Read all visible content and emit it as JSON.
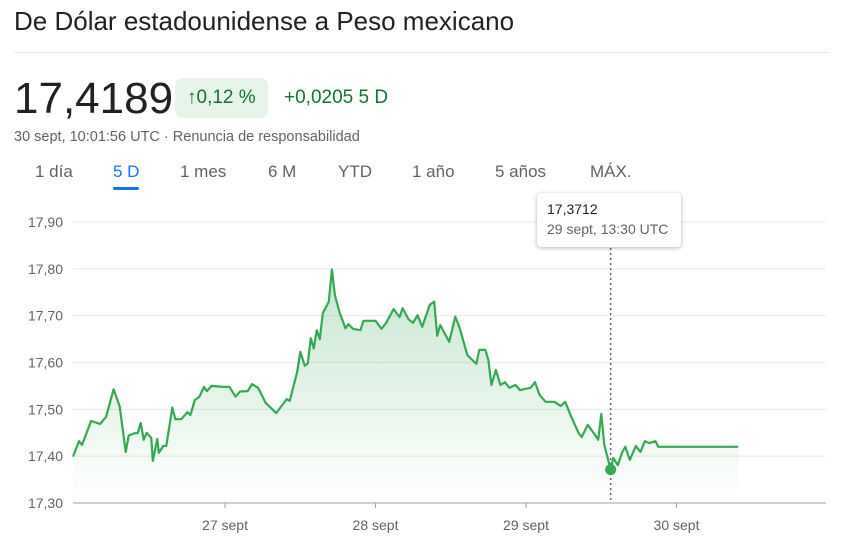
{
  "header": {
    "title": "De Dólar estadounidense a Peso mexicano"
  },
  "quote": {
    "price": "17,4189",
    "arrow_icon": "arrow-up-icon",
    "pct_change": "0,12 %",
    "abs_change": "+0,0205 5 D",
    "timestamp": "30 sept, 10:01:56 UTC · Renuncia de responsabilidad",
    "positive_color": "#137333"
  },
  "tabs": [
    {
      "label": "1 día"
    },
    {
      "label": "5 D",
      "active": true
    },
    {
      "label": "1 mes"
    },
    {
      "label": "6 M"
    },
    {
      "label": "YTD"
    },
    {
      "label": "1 año"
    },
    {
      "label": "5 años"
    },
    {
      "label": "MÁX."
    }
  ],
  "tooltip": {
    "value": "17,3712",
    "date": "29 sept, 13:30 UTC"
  },
  "chart_data": {
    "type": "area",
    "x_unit": "day of September (fractional, UTC)",
    "xlim": [
      25.99,
      31.4
    ],
    "ylim": [
      17.3,
      17.9
    ],
    "grid": true,
    "line_color": "#34a853",
    "y_ticks": [
      "17,30",
      "17,40",
      "17,50",
      "17,60",
      "17,70",
      "17,80",
      "17,90"
    ],
    "x_ticks": [
      {
        "x": 27,
        "label": "27 sept"
      },
      {
        "x": 28,
        "label": "28 sept"
      },
      {
        "x": 29,
        "label": "29 sept"
      },
      {
        "x": 30,
        "label": "30 sept"
      }
    ],
    "highlight": {
      "x": 29.5625,
      "y": 17.3712
    },
    "points": [
      [
        25.99,
        17.399
      ],
      [
        26.03,
        17.432
      ],
      [
        26.05,
        17.424
      ],
      [
        26.11,
        17.475
      ],
      [
        26.17,
        17.469
      ],
      [
        26.21,
        17.484
      ],
      [
        26.26,
        17.543
      ],
      [
        26.3,
        17.506
      ],
      [
        26.34,
        17.409
      ],
      [
        26.36,
        17.444
      ],
      [
        26.4,
        17.449
      ],
      [
        26.42,
        17.449
      ],
      [
        26.44,
        17.471
      ],
      [
        26.46,
        17.435
      ],
      [
        26.48,
        17.45
      ],
      [
        26.51,
        17.439
      ],
      [
        26.52,
        17.39
      ],
      [
        26.55,
        17.437
      ],
      [
        26.56,
        17.407
      ],
      [
        26.59,
        17.422
      ],
      [
        26.61,
        17.422
      ],
      [
        26.65,
        17.504
      ],
      [
        26.67,
        17.479
      ],
      [
        26.71,
        17.479
      ],
      [
        26.75,
        17.494
      ],
      [
        26.77,
        17.488
      ],
      [
        26.8,
        17.52
      ],
      [
        26.83,
        17.527
      ],
      [
        26.86,
        17.548
      ],
      [
        26.88,
        17.539
      ],
      [
        26.91,
        17.55
      ],
      [
        26.99,
        17.548
      ],
      [
        27.03,
        17.548
      ],
      [
        27.07,
        17.527
      ],
      [
        27.1,
        17.538
      ],
      [
        27.15,
        17.539
      ],
      [
        27.18,
        17.554
      ],
      [
        27.22,
        17.546
      ],
      [
        27.27,
        17.514
      ],
      [
        27.34,
        17.492
      ],
      [
        27.38,
        17.509
      ],
      [
        27.41,
        17.522
      ],
      [
        27.43,
        17.518
      ],
      [
        27.48,
        17.58
      ],
      [
        27.5,
        17.623
      ],
      [
        27.53,
        17.593
      ],
      [
        27.55,
        17.598
      ],
      [
        27.57,
        17.652
      ],
      [
        27.59,
        17.63
      ],
      [
        27.61,
        17.669
      ],
      [
        27.63,
        17.65
      ],
      [
        27.65,
        17.705
      ],
      [
        27.69,
        17.73
      ],
      [
        27.71,
        17.799
      ],
      [
        27.73,
        17.744
      ],
      [
        27.76,
        17.708
      ],
      [
        27.8,
        17.673
      ],
      [
        27.82,
        17.682
      ],
      [
        27.85,
        17.672
      ],
      [
        27.9,
        17.669
      ],
      [
        27.92,
        17.689
      ],
      [
        28.0,
        17.689
      ],
      [
        28.04,
        17.672
      ],
      [
        28.07,
        17.684
      ],
      [
        28.12,
        17.714
      ],
      [
        28.16,
        17.697
      ],
      [
        28.18,
        17.716
      ],
      [
        28.22,
        17.692
      ],
      [
        28.25,
        17.685
      ],
      [
        28.28,
        17.701
      ],
      [
        28.31,
        17.676
      ],
      [
        28.36,
        17.723
      ],
      [
        28.39,
        17.73
      ],
      [
        28.41,
        17.657
      ],
      [
        28.43,
        17.68
      ],
      [
        28.49,
        17.644
      ],
      [
        28.53,
        17.698
      ],
      [
        28.56,
        17.673
      ],
      [
        28.61,
        17.616
      ],
      [
        28.67,
        17.597
      ],
      [
        28.69,
        17.627
      ],
      [
        28.73,
        17.627
      ],
      [
        28.75,
        17.605
      ],
      [
        28.77,
        17.552
      ],
      [
        28.8,
        17.584
      ],
      [
        28.83,
        17.552
      ],
      [
        28.86,
        17.558
      ],
      [
        28.89,
        17.546
      ],
      [
        28.93,
        17.552
      ],
      [
        28.96,
        17.541
      ],
      [
        29.03,
        17.546
      ],
      [
        29.06,
        17.558
      ],
      [
        29.09,
        17.531
      ],
      [
        29.13,
        17.516
      ],
      [
        29.19,
        17.516
      ],
      [
        29.23,
        17.507
      ],
      [
        29.26,
        17.516
      ],
      [
        29.31,
        17.477
      ],
      [
        29.35,
        17.449
      ],
      [
        29.37,
        17.441
      ],
      [
        29.41,
        17.467
      ],
      [
        29.46,
        17.445
      ],
      [
        29.48,
        17.435
      ],
      [
        29.5,
        17.49
      ],
      [
        29.52,
        17.424
      ],
      [
        29.5625,
        17.3712
      ],
      [
        29.58,
        17.396
      ],
      [
        29.61,
        17.381
      ],
      [
        29.64,
        17.409
      ],
      [
        29.66,
        17.42
      ],
      [
        29.69,
        17.392
      ],
      [
        29.73,
        17.422
      ],
      [
        29.76,
        17.409
      ],
      [
        29.79,
        17.432
      ],
      [
        29.82,
        17.428
      ],
      [
        29.86,
        17.432
      ],
      [
        29.88,
        17.42
      ],
      [
        30.41,
        17.42
      ]
    ]
  }
}
